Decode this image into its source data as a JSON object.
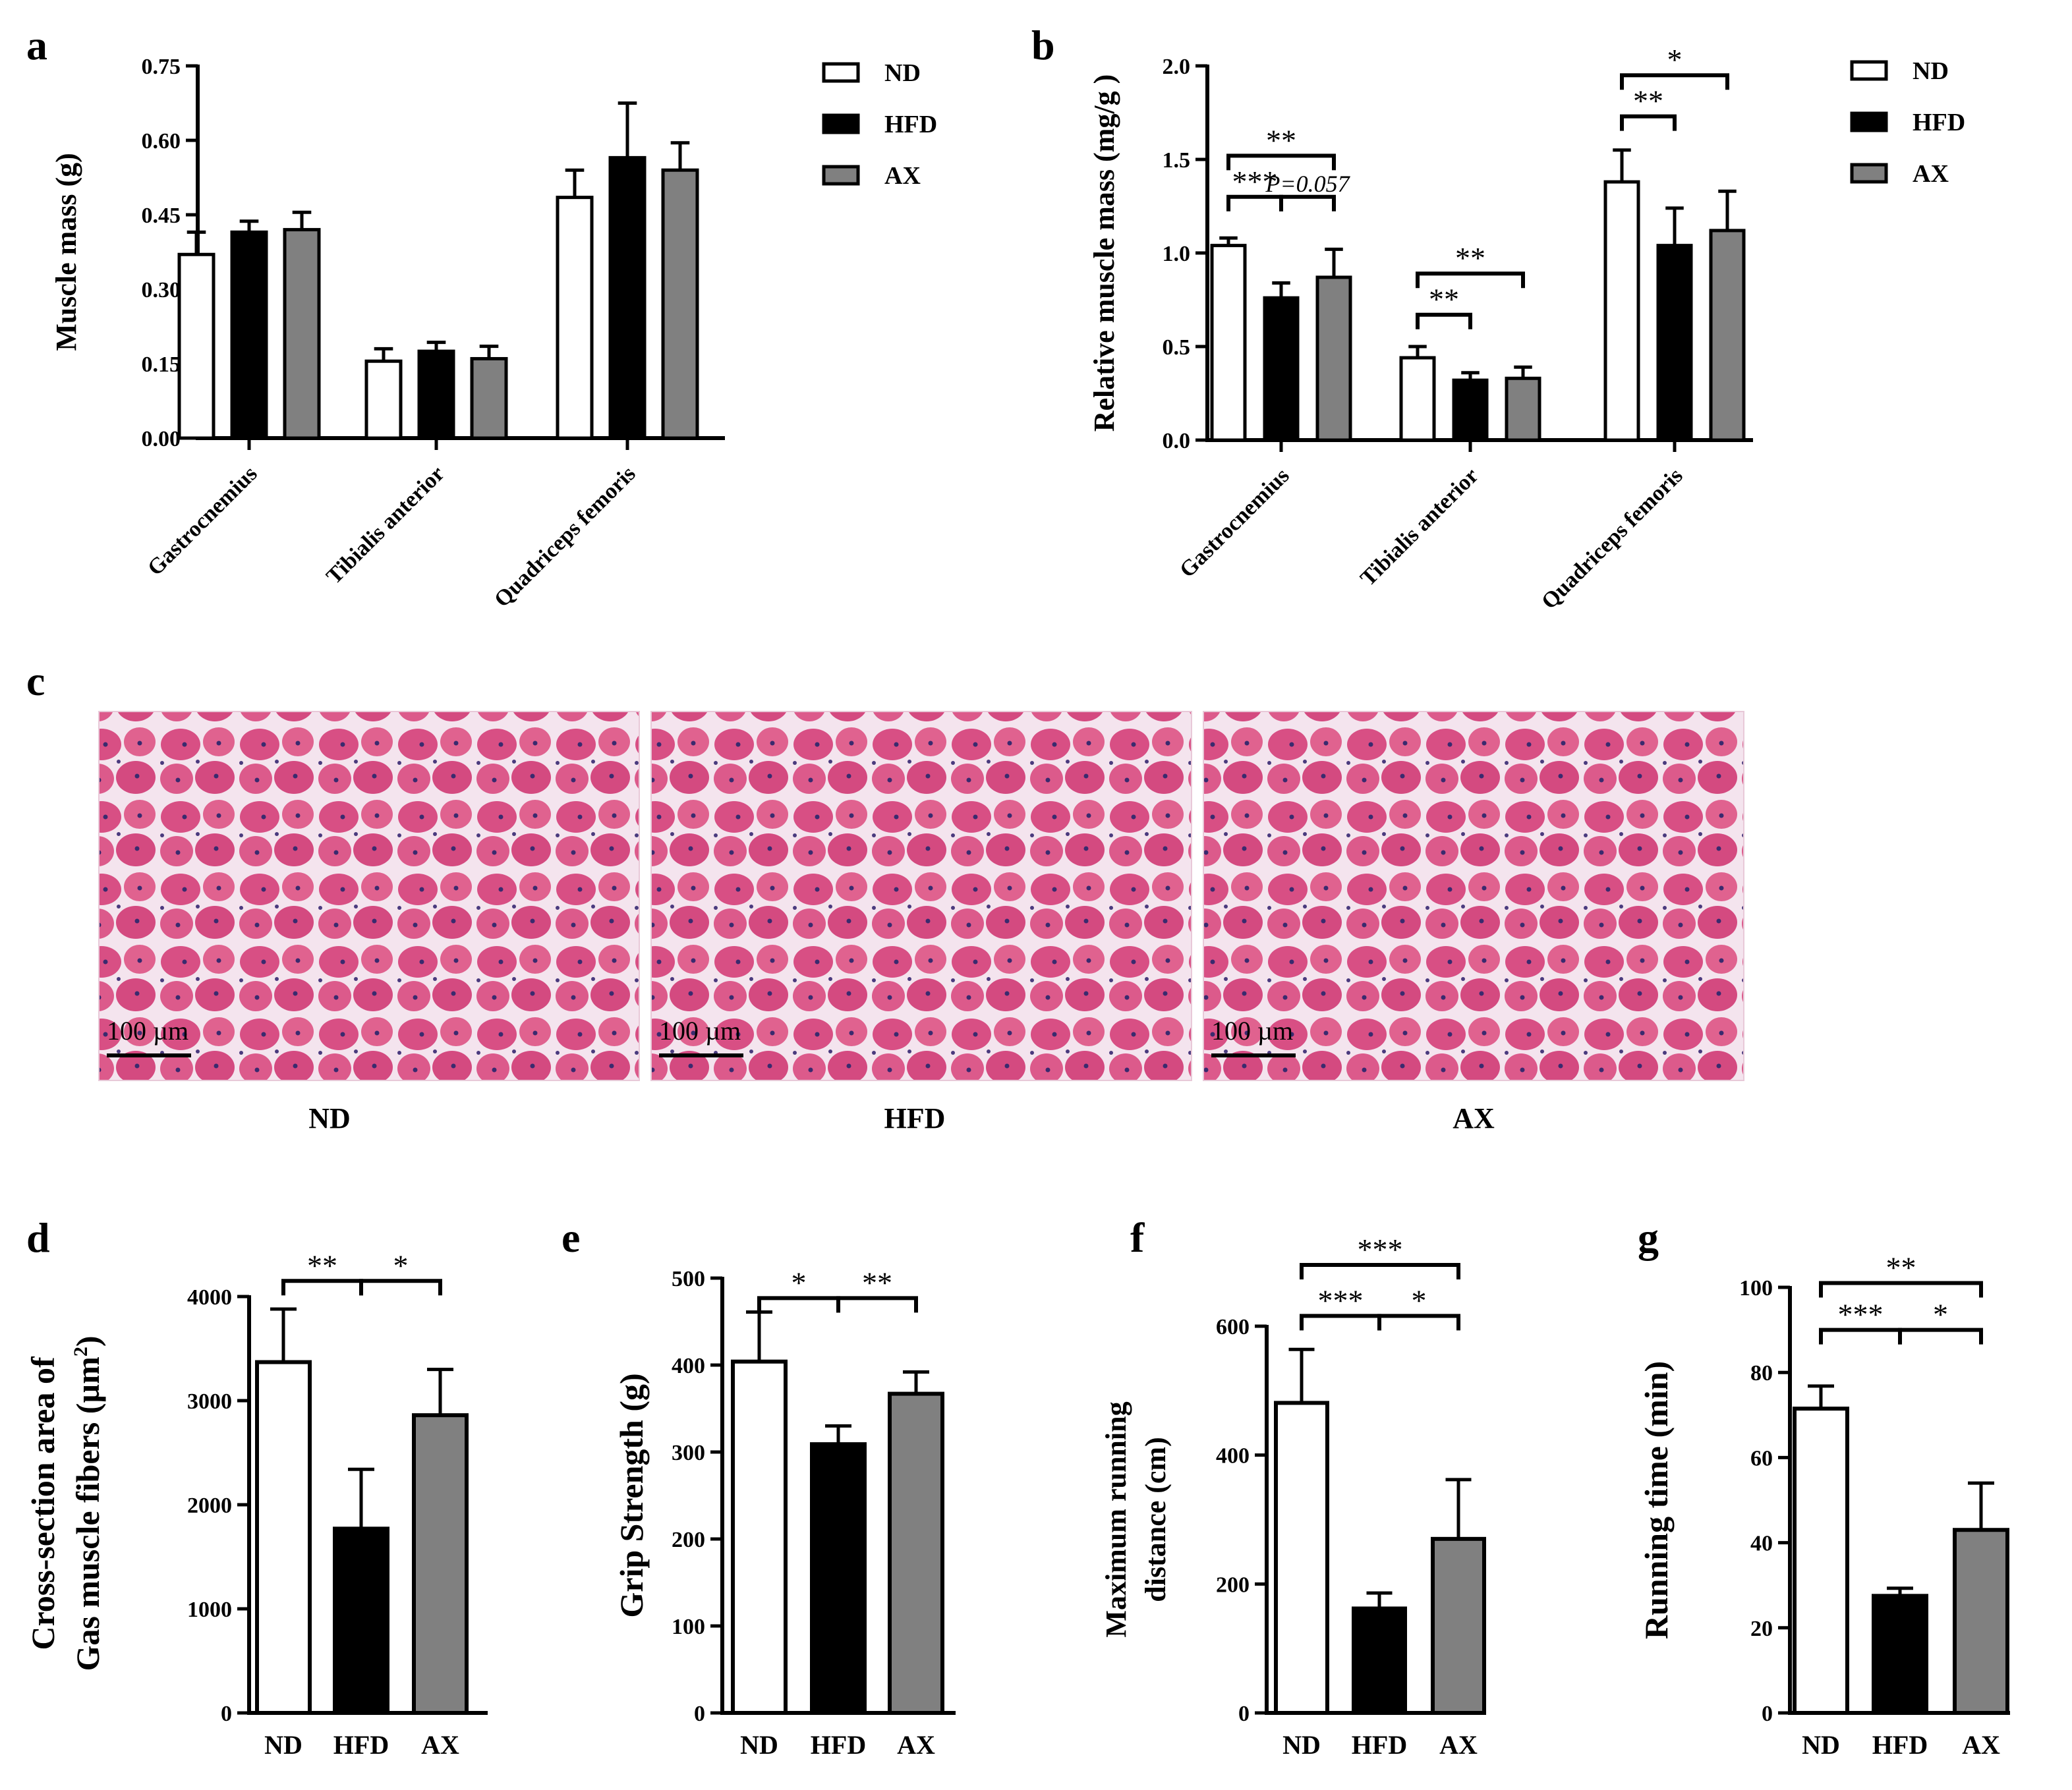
{
  "groups": [
    "ND",
    "HFD",
    "AX"
  ],
  "colors": {
    "ND": "#ffffff",
    "HFD": "#000000",
    "AX": "#808080"
  },
  "panel_c": {
    "label": "c",
    "images": [
      {
        "caption": "ND",
        "scale_bar": "100 µm"
      },
      {
        "caption": "HFD",
        "scale_bar": "100 µm"
      },
      {
        "caption": "AX",
        "scale_bar": "100 µm"
      }
    ]
  },
  "chart_data": [
    {
      "panel": "a",
      "type": "bar",
      "title": "",
      "xlabel": "",
      "ylabel": "Muscle mass (g)",
      "ylim": [
        0,
        0.75
      ],
      "yticks": [
        0,
        0.15,
        0.3,
        0.45,
        0.6,
        0.75
      ],
      "ytick_labels": [
        "0.00",
        "0.15",
        "0.30",
        "0.45",
        "0.60",
        "0.75"
      ],
      "categories": [
        "Gastrocnemius",
        "Tibialis anterior",
        "Quadriceps femoris"
      ],
      "legend": [
        "ND",
        "HFD",
        "AX"
      ],
      "legend_position": "top-right",
      "series": [
        {
          "name": "ND",
          "values": [
            0.37,
            0.155,
            0.485
          ],
          "errors": [
            0.045,
            0.025,
            0.055
          ]
        },
        {
          "name": "HFD",
          "values": [
            0.415,
            0.175,
            0.565
          ],
          "errors": [
            0.022,
            0.018,
            0.11
          ]
        },
        {
          "name": "AX",
          "values": [
            0.42,
            0.16,
            0.54
          ],
          "errors": [
            0.035,
            0.025,
            0.055
          ]
        }
      ],
      "significance": []
    },
    {
      "panel": "b",
      "type": "bar",
      "title": "",
      "xlabel": "",
      "ylabel": "Relative muscle mass (mg/g )",
      "ylim": [
        0,
        2.0
      ],
      "yticks": [
        0,
        0.5,
        1.0,
        1.5,
        2.0
      ],
      "ytick_labels": [
        "0.0",
        "0.5",
        "1.0",
        "1.5",
        "2.0"
      ],
      "categories": [
        "Gastrocnemius",
        "Tibialis anterior",
        "Quadriceps femoris"
      ],
      "legend": [
        "ND",
        "HFD",
        "AX"
      ],
      "legend_position": "top-right",
      "series": [
        {
          "name": "ND",
          "values": [
            1.04,
            0.44,
            1.38
          ],
          "errors": [
            0.04,
            0.06,
            0.17
          ]
        },
        {
          "name": "HFD",
          "values": [
            0.76,
            0.32,
            1.04
          ],
          "errors": [
            0.08,
            0.04,
            0.2
          ]
        },
        {
          "name": "AX",
          "values": [
            0.87,
            0.33,
            1.12
          ],
          "errors": [
            0.15,
            0.06,
            0.21
          ]
        }
      ],
      "significance": [
        {
          "cat": 0,
          "from": 0,
          "to": 1,
          "level": 1.3,
          "label": "***"
        },
        {
          "cat": 0,
          "from": 1,
          "to": 2,
          "level": 1.3,
          "label": "P=0.057",
          "italic": true
        },
        {
          "cat": 0,
          "from": 0,
          "to": 2,
          "level": 1.52,
          "label": "**"
        },
        {
          "cat": 1,
          "from": 0,
          "to": 1,
          "level": 0.67,
          "label": "**"
        },
        {
          "cat": 1,
          "from": 0,
          "to": 2,
          "level": 0.89,
          "label": "**"
        },
        {
          "cat": 2,
          "from": 0,
          "to": 1,
          "level": 1.73,
          "label": "**"
        },
        {
          "cat": 2,
          "from": 0,
          "to": 2,
          "level": 1.95,
          "label": "*"
        }
      ]
    },
    {
      "panel": "d",
      "type": "bar",
      "title": "",
      "xlabel": "",
      "ylabel": [
        "Cross-section area of",
        "Gas muscle fibers (µm",
        "2",
        ")"
      ],
      "ylim": [
        0,
        4000
      ],
      "yticks": [
        0,
        1000,
        2000,
        3000,
        4000
      ],
      "ytick_labels": [
        "0",
        "1000",
        "2000",
        "3000",
        "4000"
      ],
      "categories": [
        "ND",
        "HFD",
        "AX"
      ],
      "values": [
        3370,
        1770,
        2860
      ],
      "errors": [
        510,
        570,
        440
      ],
      "significance": [
        {
          "from": 0,
          "to": 1,
          "level": 4150,
          "label": "**"
        },
        {
          "from": 1,
          "to": 2,
          "level": 4150,
          "label": "*"
        }
      ]
    },
    {
      "panel": "e",
      "type": "bar",
      "title": "",
      "xlabel": "",
      "ylabel": "Grip Strength (g)",
      "ylim": [
        0,
        500
      ],
      "yticks": [
        0,
        100,
        200,
        300,
        400,
        500
      ],
      "ytick_labels": [
        "0",
        "100",
        "200",
        "300",
        "400",
        "500"
      ],
      "categories": [
        "ND",
        "HFD",
        "AX"
      ],
      "values": [
        404,
        309,
        367
      ],
      "errors": [
        57,
        21,
        25
      ],
      "significance": [
        {
          "from": 0,
          "to": 1,
          "level": 477,
          "label": "*"
        },
        {
          "from": 1,
          "to": 2,
          "level": 477,
          "label": "**"
        }
      ]
    },
    {
      "panel": "f",
      "type": "bar",
      "title": "",
      "xlabel": "",
      "ylabel": [
        "Maximum running",
        "distance (cm)"
      ],
      "ylim": [
        0,
        600
      ],
      "yticks": [
        0,
        200,
        400,
        600
      ],
      "ytick_labels": [
        "0",
        "200",
        "400",
        "600"
      ],
      "categories": [
        "ND",
        "HFD",
        "AX"
      ],
      "values": [
        481,
        162,
        270
      ],
      "errors": [
        83,
        24,
        92
      ],
      "significance": [
        {
          "from": 0,
          "to": 1,
          "level": 616,
          "label": "***"
        },
        {
          "from": 1,
          "to": 2,
          "level": 616,
          "label": "*"
        },
        {
          "from": 0,
          "to": 2,
          "level": 695,
          "label": "***"
        }
      ]
    },
    {
      "panel": "g",
      "type": "bar",
      "title": "",
      "xlabel": "",
      "ylabel": "Running time (min)",
      "ylim": [
        0,
        100
      ],
      "yticks": [
        0,
        20,
        40,
        60,
        80,
        100
      ],
      "ytick_labels": [
        "0",
        "20",
        "40",
        "60",
        "80",
        "100"
      ],
      "categories": [
        "ND",
        "HFD",
        "AX"
      ],
      "values": [
        71.5,
        27.5,
        43
      ],
      "errors": [
        5.3,
        1.8,
        11
      ],
      "significance": [
        {
          "from": 0,
          "to": 1,
          "level": 90,
          "label": "***"
        },
        {
          "from": 1,
          "to": 2,
          "level": 90,
          "label": "*"
        },
        {
          "from": 0,
          "to": 2,
          "level": 101,
          "label": "**"
        }
      ]
    }
  ]
}
